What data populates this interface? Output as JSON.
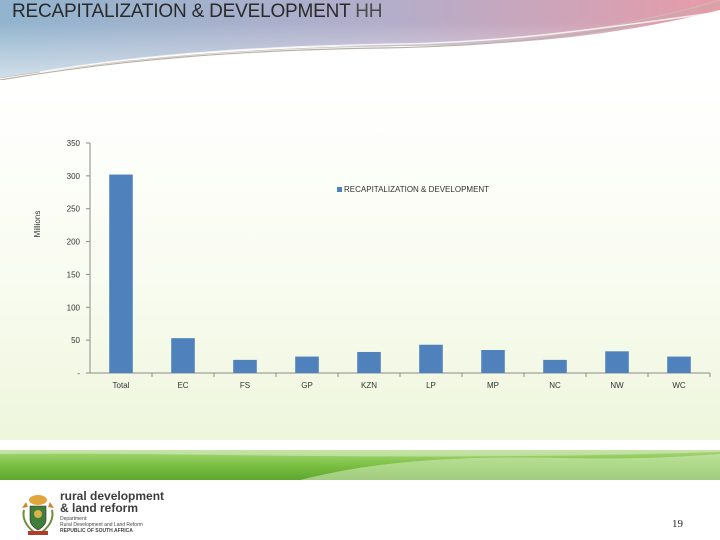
{
  "slide": {
    "title_bold": "RECAPITALIZATION & DEVELOPMENT",
    "title_light": "HH",
    "page_number": "19"
  },
  "logo": {
    "name_line1": "rural development",
    "name_line2": "& land reform",
    "dept_label": "Department:",
    "dept_name": "Rural Development and Land Reform",
    "country": "REPUBLIC OF SOUTH AFRICA"
  },
  "colors": {
    "bar": "#4f81bd",
    "header_band_left": "#7ea7c6",
    "header_band_right": "#e38a99",
    "green_band": "#7bc143"
  },
  "chart_data": {
    "type": "bar",
    "categories": [
      "Total",
      "EC",
      "FS",
      "GP",
      "KZN",
      "LP",
      "MP",
      "NC",
      "NW",
      "WC"
    ],
    "series": [
      {
        "name": "RECAPITALIZATION & DEVELOPMENT",
        "values": [
          302,
          53,
          20,
          25,
          32,
          43,
          35,
          20,
          33,
          25
        ]
      }
    ],
    "ylabel": "Millions",
    "ylim": [
      0,
      350
    ],
    "yticks": [
      0,
      50,
      100,
      150,
      200,
      250,
      300,
      350
    ],
    "ytick_labels": [
      "-",
      "50",
      "100",
      "150",
      "200",
      "250",
      "300",
      "350"
    ],
    "grid": false,
    "legend_position": "top-right"
  }
}
